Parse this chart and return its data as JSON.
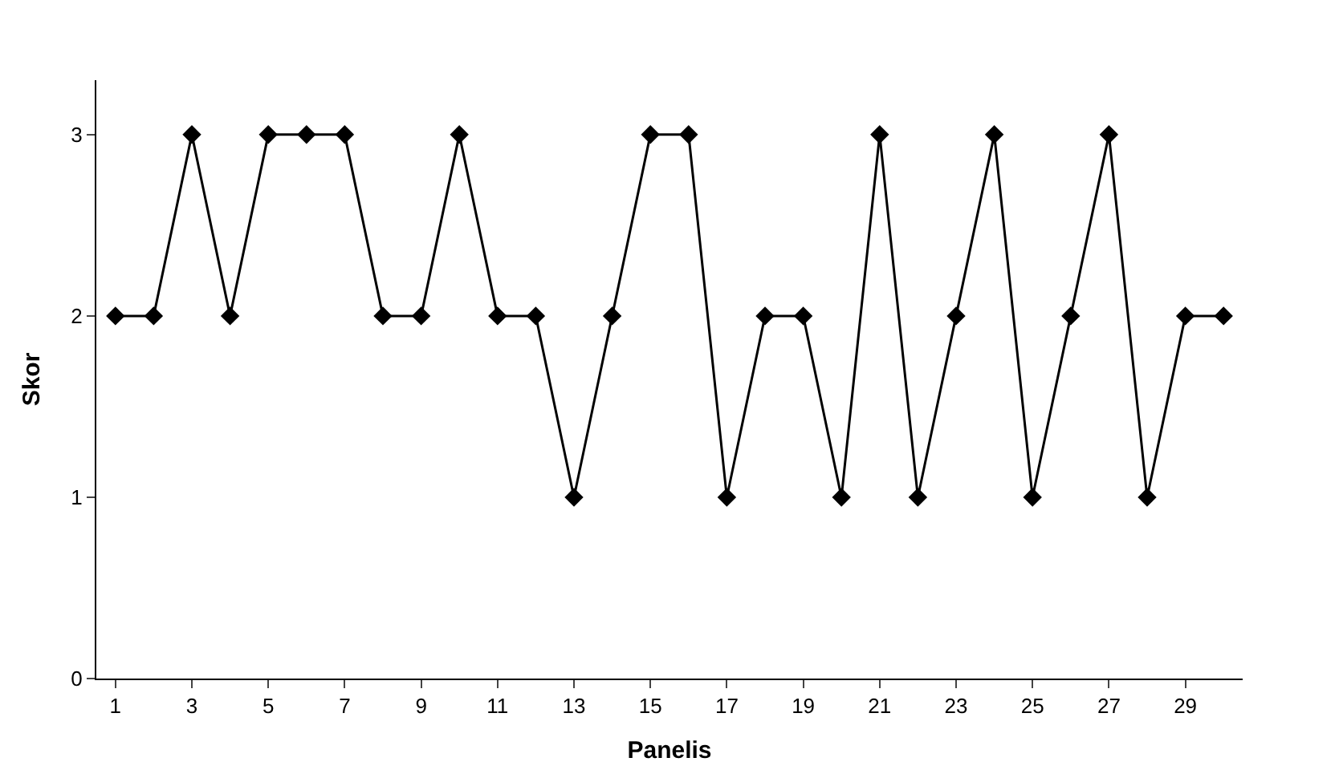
{
  "chart_data": {
    "type": "line",
    "xlabel": "Panelis",
    "ylabel": "Skor",
    "x": [
      1,
      2,
      3,
      4,
      5,
      6,
      7,
      8,
      9,
      10,
      11,
      12,
      13,
      14,
      15,
      16,
      17,
      18,
      19,
      20,
      21,
      22,
      23,
      24,
      25,
      26,
      27,
      28,
      29,
      30
    ],
    "series": [
      {
        "color": "#000000",
        "values": [
          2,
          2,
          3,
          2,
          3,
          3,
          3,
          2,
          2,
          3,
          2,
          2,
          1,
          2,
          3,
          3,
          1,
          2,
          2,
          1,
          3,
          1,
          2,
          3,
          1,
          2,
          3,
          1,
          2,
          2
        ]
      }
    ],
    "xlim": [
      0.5,
      30.5
    ],
    "xticks": [
      1,
      3,
      5,
      7,
      9,
      11,
      13,
      15,
      17,
      19,
      21,
      23,
      25,
      27,
      29
    ],
    "ylim": [
      0,
      3.3
    ],
    "yticks": [
      0,
      1,
      2,
      3
    ],
    "marker": "diamond",
    "line_style": "solid"
  }
}
